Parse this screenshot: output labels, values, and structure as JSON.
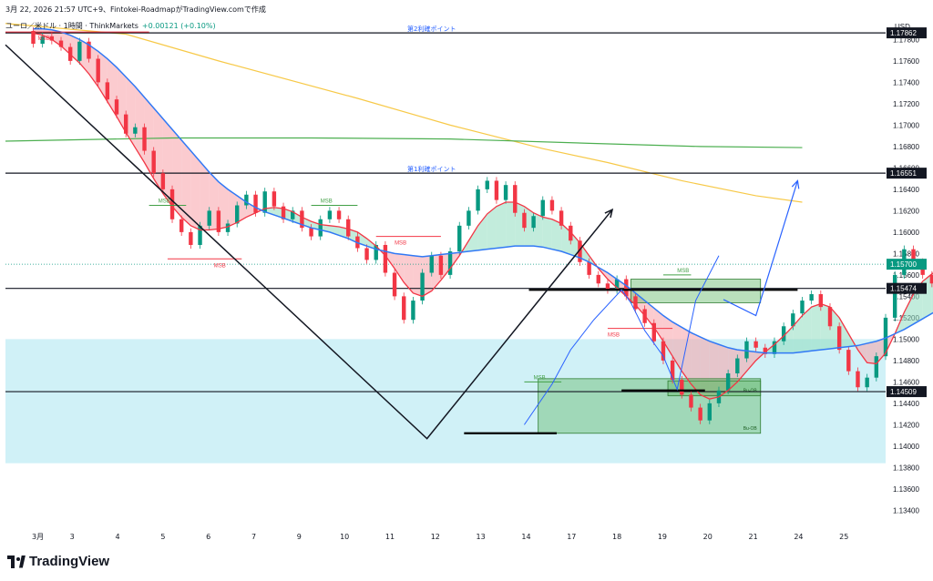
{
  "header": {
    "line1": "3月 22, 2026 21:57 UTC+9、Fintokei-RoadmapがTradingView.comで作成",
    "symbol": "ユーロ／米ドル · 1時間 · ThinkMarkets",
    "change": "+0.00121 (+0.10%)"
  },
  "brand": {
    "name": "TradingView"
  },
  "colors": {
    "up": "#089981",
    "down": "#f23645",
    "ma_fast": "#f23645",
    "ma_slow": "#3179f5",
    "ma_200": "#f7c948",
    "ma_long": "#4caf50",
    "zone": "#c8eef6",
    "box": "#66bb6a",
    "projection": "#2962ff"
  },
  "chart_data": {
    "type": "candlestick",
    "currency": "USD",
    "y_ticks": [
      "1.17800",
      "1.17600",
      "1.17400",
      "1.17200",
      "1.17000",
      "1.16800",
      "1.16600",
      "1.16400",
      "1.16200",
      "1.16000",
      "1.15800",
      "1.15600",
      "1.15400",
      "1.15200",
      "1.15000",
      "1.14800",
      "1.14600",
      "1.14400",
      "1.14200",
      "1.14000",
      "1.13800",
      "1.13600",
      "1.13400"
    ],
    "ylim": [
      1.1325,
      1.1805
    ],
    "x_ticks": [
      "3月",
      "3",
      "4",
      "5",
      "6",
      "7",
      "9",
      "10",
      "11",
      "12",
      "13",
      "14",
      "17",
      "18",
      "19",
      "20",
      "21",
      "24",
      "25"
    ],
    "x_tick_pos": [
      0.5,
      4.2,
      9.1,
      14.0,
      18.9,
      23.8,
      28.7,
      33.6,
      38.5,
      43.4,
      48.3,
      53.2,
      58.1,
      63.0,
      67.9,
      72.8,
      77.7,
      82.6,
      87.5
    ],
    "xlim": [
      -3,
      92
    ],
    "price_labels": [
      {
        "price": 1.17862,
        "text": "1.17862",
        "style": "dark"
      },
      {
        "price": 1.16551,
        "text": "1.16551",
        "style": "dark"
      },
      {
        "price": 1.157,
        "text": "1.15700",
        "style": "green"
      },
      {
        "price": 1.15474,
        "text": "1.15474",
        "style": "dark"
      },
      {
        "price": 1.14509,
        "text": "1.14509",
        "style": "dark"
      }
    ],
    "hlines": [
      {
        "price": 1.17862,
        "label": "第2利確ポイント"
      },
      {
        "price": 1.16551,
        "label": "第1利確ポイント"
      },
      {
        "price": 1.15474,
        "label": ""
      },
      {
        "price": 1.14509,
        "label": ""
      }
    ],
    "current_price": 1.157,
    "zone": [
      1.15,
      1.1384
    ],
    "ohlc": [
      [
        1.1788,
        1.1776
      ],
      [
        1.1776,
        1.1783
      ],
      [
        1.1783,
        1.1779
      ],
      [
        1.1779,
        1.1773
      ],
      [
        1.1773,
        1.176
      ],
      [
        1.176,
        1.1778
      ],
      [
        1.1778,
        1.1762
      ],
      [
        1.1762,
        1.174
      ],
      [
        1.174,
        1.1724
      ],
      [
        1.1724,
        1.171
      ],
      [
        1.171,
        1.1692
      ],
      [
        1.1692,
        1.1698
      ],
      [
        1.1698,
        1.1676
      ],
      [
        1.1676,
        1.1655
      ],
      [
        1.1655,
        1.164
      ],
      [
        1.164,
        1.1612
      ],
      [
        1.1612,
        1.16
      ],
      [
        1.16,
        1.1588
      ],
      [
        1.1588,
        1.1606
      ],
      [
        1.1606,
        1.162
      ],
      [
        1.162,
        1.16
      ],
      [
        1.16,
        1.1608
      ],
      [
        1.1608,
        1.1625
      ],
      [
        1.1625,
        1.1635
      ],
      [
        1.1635,
        1.1618
      ],
      [
        1.1618,
        1.1638
      ],
      [
        1.1638,
        1.1624
      ],
      [
        1.1624,
        1.1612
      ],
      [
        1.1612,
        1.162
      ],
      [
        1.162,
        1.1604
      ],
      [
        1.1604,
        1.1596
      ],
      [
        1.1596,
        1.1612
      ],
      [
        1.1612,
        1.162
      ],
      [
        1.162,
        1.1612
      ],
      [
        1.1612,
        1.1596
      ],
      [
        1.1596,
        1.1585
      ],
      [
        1.1585,
        1.1574
      ],
      [
        1.1574,
        1.1588
      ],
      [
        1.1588,
        1.1562
      ],
      [
        1.1562,
        1.154
      ],
      [
        1.154,
        1.1518
      ],
      [
        1.1518,
        1.1536
      ],
      [
        1.1536,
        1.1562
      ],
      [
        1.1562,
        1.1578
      ],
      [
        1.1578,
        1.156
      ],
      [
        1.156,
        1.1582
      ],
      [
        1.1582,
        1.1606
      ],
      [
        1.1606,
        1.162
      ],
      [
        1.162,
        1.164
      ],
      [
        1.164,
        1.1648
      ],
      [
        1.1648,
        1.163
      ],
      [
        1.163,
        1.1644
      ],
      [
        1.1644,
        1.1618
      ],
      [
        1.1618,
        1.1604
      ],
      [
        1.1604,
        1.1615
      ],
      [
        1.1615,
        1.163
      ],
      [
        1.163,
        1.162
      ],
      [
        1.162,
        1.1606
      ],
      [
        1.1606,
        1.1592
      ],
      [
        1.1592,
        1.1572
      ],
      [
        1.1572,
        1.156
      ],
      [
        1.156,
        1.1552
      ],
      [
        1.1552,
        1.1546
      ],
      [
        1.1546,
        1.1556
      ],
      [
        1.1556,
        1.154
      ],
      [
        1.154,
        1.1528
      ],
      [
        1.1528,
        1.1515
      ],
      [
        1.1515,
        1.1498
      ],
      [
        1.1498,
        1.148
      ],
      [
        1.148,
        1.1462
      ],
      [
        1.1462,
        1.1448
      ],
      [
        1.1448,
        1.1436
      ],
      [
        1.1436,
        1.1424
      ],
      [
        1.1424,
        1.144
      ],
      [
        1.144,
        1.1452
      ],
      [
        1.1452,
        1.1468
      ],
      [
        1.1468,
        1.1482
      ],
      [
        1.1482,
        1.1498
      ],
      [
        1.1498,
        1.1492
      ],
      [
        1.1492,
        1.1486
      ],
      [
        1.1486,
        1.1498
      ],
      [
        1.1498,
        1.1512
      ],
      [
        1.1512,
        1.1524
      ],
      [
        1.1524,
        1.1536
      ],
      [
        1.1536,
        1.1542
      ],
      [
        1.1542,
        1.153
      ],
      [
        1.153,
        1.1512
      ],
      [
        1.1512,
        1.149
      ],
      [
        1.149,
        1.147
      ],
      [
        1.147,
        1.1455
      ],
      [
        1.1455,
        1.1464
      ],
      [
        1.1464,
        1.1484
      ],
      [
        1.1484,
        1.152
      ],
      [
        1.152,
        1.156
      ],
      [
        1.156,
        1.1584
      ],
      [
        1.1584,
        1.1572
      ],
      [
        1.1572,
        1.156
      ],
      [
        1.156,
        1.1552
      ],
      [
        1.1552,
        1.1562
      ],
      [
        1.1562,
        1.157
      ]
    ],
    "ma_fast": [
      1.1786,
      1.1784,
      1.178,
      1.1774,
      1.1766,
      1.1758,
      1.1748,
      1.1736,
      1.1722,
      1.1708,
      1.1693,
      1.1679,
      1.1665,
      1.165,
      1.1636,
      1.1624,
      1.1614,
      1.1606,
      1.1602,
      1.1602,
      1.1603,
      1.1605,
      1.1609,
      1.1614,
      1.1618,
      1.1622,
      1.1623,
      1.1622,
      1.1619,
      1.1614,
      1.161,
      1.1607,
      1.1606,
      1.1605,
      1.1603,
      1.16,
      1.1594,
      1.1587,
      1.1578,
      1.1566,
      1.1553,
      1.1543,
      1.154,
      1.1545,
      1.1555,
      1.1566,
      1.1578,
      1.1592,
      1.1606,
      1.1617,
      1.1624,
      1.1628,
      1.1628,
      1.1624,
      1.1618,
      1.1614,
      1.1612,
      1.1608,
      1.16,
      1.159,
      1.1578,
      1.1566,
      1.1556,
      1.1548,
      1.154,
      1.1532,
      1.1522,
      1.1511,
      1.1498,
      1.1484,
      1.147,
      1.1458,
      1.1448,
      1.1444,
      1.1446,
      1.1452,
      1.146,
      1.147,
      1.148,
      1.1488,
      1.1495,
      1.1503,
      1.1512,
      1.1522,
      1.153,
      1.1533,
      1.153,
      1.152,
      1.1505,
      1.149,
      1.1478,
      1.1477,
      1.1487,
      1.1505,
      1.1525,
      1.1542,
      1.1554,
      1.1561,
      1.1566,
      1.1568
    ],
    "ma_slow": [
      1.179,
      1.179,
      1.1789,
      1.1787,
      1.1784,
      1.178,
      1.1775,
      1.1769,
      1.1762,
      1.1754,
      1.1745,
      1.1736,
      1.1726,
      1.1716,
      1.1706,
      1.1696,
      1.1686,
      1.1676,
      1.1666,
      1.1656,
      1.1647,
      1.164,
      1.1634,
      1.1628,
      1.1623,
      1.1619,
      1.1616,
      1.1613,
      1.161,
      1.1607,
      1.1604,
      1.1602,
      1.16,
      1.1597,
      1.1594,
      1.159,
      1.1587,
      1.1584,
      1.1582,
      1.158,
      1.1579,
      1.1578,
      1.1577,
      1.1578,
      1.1579,
      1.158,
      1.1581,
      1.1582,
      1.1583,
      1.1584,
      1.1585,
      1.1586,
      1.1587,
      1.1587,
      1.1587,
      1.1586,
      1.1584,
      1.1582,
      1.1579,
      1.1576,
      1.1572,
      1.1567,
      1.1562,
      1.1556,
      1.155,
      1.1543,
      1.1536,
      1.1529,
      1.1522,
      1.1516,
      1.1511,
      1.1506,
      1.1502,
      1.1498,
      1.1495,
      1.1492,
      1.149,
      1.1489,
      1.1488,
      1.1487,
      1.1487,
      1.1487,
      1.1487,
      1.1488,
      1.1489,
      1.149,
      1.1491,
      1.1492,
      1.1493,
      1.1494,
      1.1496,
      1.1498,
      1.1501,
      1.1505,
      1.1509,
      1.1514,
      1.1519,
      1.1524,
      1.1529,
      1.1533
    ],
    "ma_200": [
      [
        -3,
        1.1795
      ],
      [
        10,
        1.1785
      ],
      [
        20,
        1.176
      ],
      [
        35,
        1.1725
      ],
      [
        45,
        1.17
      ],
      [
        55,
        1.1678
      ],
      [
        62,
        1.1665
      ],
      [
        70,
        1.1648
      ],
      [
        78,
        1.1634
      ],
      [
        83,
        1.1628
      ]
    ],
    "ma_long": [
      [
        -3,
        1.1685
      ],
      [
        15,
        1.1688
      ],
      [
        30,
        1.1688
      ],
      [
        45,
        1.1687
      ],
      [
        60,
        1.1683
      ],
      [
        72,
        1.168
      ],
      [
        83,
        1.1679
      ]
    ],
    "black_v": [
      [
        -3,
        1.1775
      ],
      [
        42.5,
        1.1407
      ],
      [
        62.5,
        1.1621
      ]
    ],
    "projection": [
      [
        74.5,
        1.1537
      ],
      [
        78,
        1.1522
      ],
      [
        82.5,
        1.1648
      ]
    ],
    "blue_path": [
      [
        53,
        1.142
      ],
      [
        56,
        1.1458
      ],
      [
        58,
        1.149
      ],
      [
        60.5,
        1.1518
      ],
      [
        63.5,
        1.1546
      ],
      [
        64.5,
        1.1534
      ],
      [
        66,
        1.1508
      ],
      [
        68,
        1.1484
      ],
      [
        69.5,
        1.1453
      ],
      [
        71.5,
        1.1536
      ],
      [
        74,
        1.1578
      ]
    ],
    "support_segments": [
      {
        "from": 46.5,
        "to": 56.5,
        "price": 1.1412
      },
      {
        "from": 63.5,
        "to": 72.5,
        "price": 1.1452
      },
      {
        "from": 53.5,
        "to": 82.5,
        "price": 1.1546
      }
    ],
    "green_boxes": [
      {
        "x0": 54.5,
        "x1": 78.5,
        "y0": 1.1463,
        "y1": 1.1412,
        "label": "Bu-OB"
      },
      {
        "x0": 68.5,
        "x1": 78.5,
        "y0": 1.1461,
        "y1": 1.1447,
        "label": "Bu-OB"
      },
      {
        "x0": 64.5,
        "x1": 78.5,
        "y0": 1.1556,
        "y1": 1.1534,
        "label": ""
      }
    ],
    "msb": [
      {
        "x": 0.5,
        "price": 1.1787,
        "text": "MSB",
        "color": "red",
        "seg": [
          -3,
          12.5
        ]
      },
      {
        "x": 13.5,
        "price": 1.1625,
        "text": "MSB",
        "color": "green",
        "seg": [
          12.5,
          16.5
        ]
      },
      {
        "x": 19.5,
        "price": 1.1575,
        "text": "MSB",
        "color": "red",
        "seg": [
          14.5,
          22.5
        ]
      },
      {
        "x": 31,
        "price": 1.1625,
        "text": "MSB",
        "color": "green",
        "seg": [
          30,
          35
        ]
      },
      {
        "x": 39,
        "price": 1.1596,
        "text": "MSB",
        "color": "red",
        "seg": [
          37,
          44
        ]
      },
      {
        "x": 54,
        "price": 1.146,
        "text": "MSB",
        "color": "green",
        "seg": [
          53,
          57
        ]
      },
      {
        "x": 62,
        "price": 1.151,
        "text": "MSB",
        "color": "red",
        "seg": [
          62,
          69
        ]
      },
      {
        "x": 69.5,
        "price": 1.156,
        "text": "MSB",
        "color": "green",
        "seg": [
          68,
          71
        ]
      }
    ]
  }
}
